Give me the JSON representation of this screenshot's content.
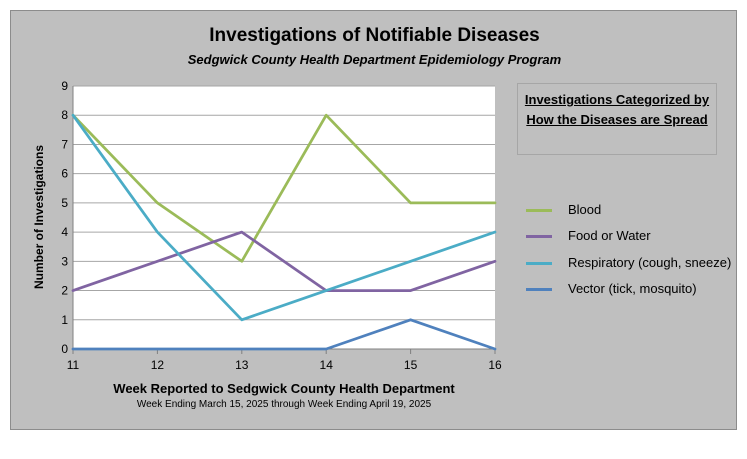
{
  "chart_data": {
    "type": "line",
    "title": "Investigations of Notifiable Diseases",
    "subtitle": "Sedgwick County Health Department Epidemiology Program",
    "xlabel": "Week Reported to Sedgwick County Health Department",
    "xlabel_sub": "Week Ending  March 15, 2025 through Week Ending  April 19, 2025",
    "ylabel": "Number of Investigations",
    "x": [
      11,
      12,
      13,
      14,
      15,
      16
    ],
    "ylim": [
      0,
      9
    ],
    "yticks": [
      0,
      1,
      2,
      3,
      4,
      5,
      6,
      7,
      8,
      9
    ],
    "grid": "horizontal",
    "legend_title": "Investigations Categorized by How the Diseases are Spread",
    "legend_position": "right",
    "series": [
      {
        "name": "Blood",
        "values": [
          8,
          5,
          3,
          8,
          5,
          5
        ],
        "color": "#9bbb59"
      },
      {
        "name": "Food or Water",
        "values": [
          2,
          3,
          4,
          2,
          2,
          3
        ],
        "color": "#8064a2"
      },
      {
        "name": "Respiratory (cough, sneeze)",
        "values": [
          8,
          4,
          1,
          2,
          3,
          4
        ],
        "color": "#4bacc6"
      },
      {
        "name": "Vector (tick, mosquito)",
        "values": [
          0,
          0,
          0,
          0,
          1,
          0
        ],
        "color": "#4f81bd"
      }
    ]
  }
}
